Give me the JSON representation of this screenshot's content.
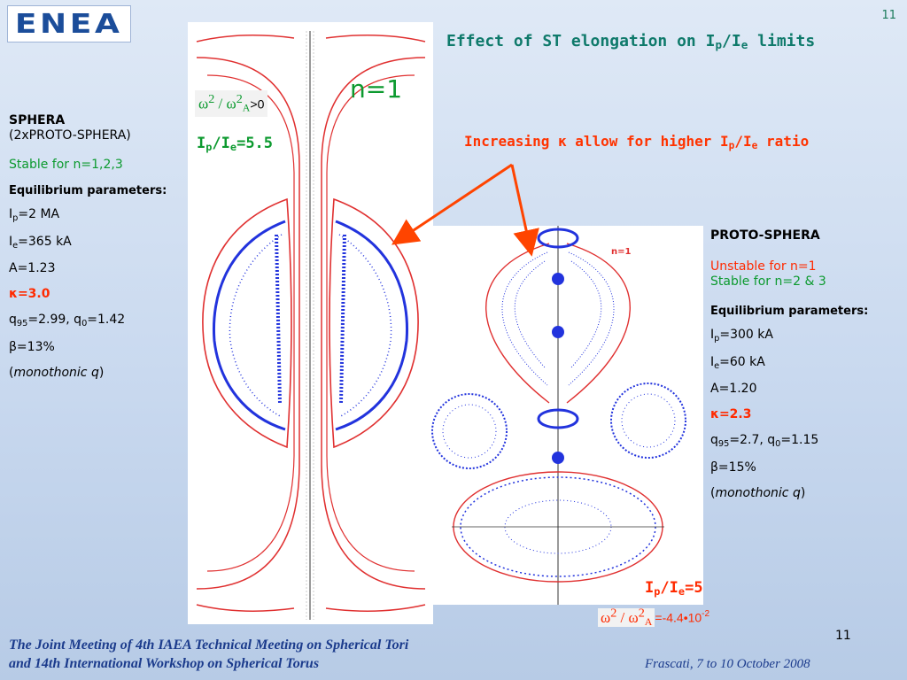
{
  "page_number": "11",
  "title": {
    "prefix": "Effect of ST elongation on I",
    "sub1": "p",
    "slash": "/I",
    "sub2": "e",
    "suffix": " limits"
  },
  "increasing": {
    "prefix": "Increasing ",
    "kappa": "κ",
    "mid": " allow for higher I",
    "sub1": "p",
    "slash": "/I",
    "sub2": "e",
    "suffix": " ratio"
  },
  "logo_text": "ENEA",
  "left_plot": {
    "mode_label": "n=1",
    "omega_expr": {
      "w": "ω",
      "sup": "2",
      "slash": " / ",
      "sub": "A",
      "rest": ">0"
    },
    "ratio": {
      "i": "I",
      "sub1": "p",
      "slash": "/I",
      "sub2": "e",
      "value": "=5.5"
    }
  },
  "right_plot": {
    "mode_label": "n=1",
    "ratio": {
      "i": "I",
      "sub1": "p",
      "slash": "/I",
      "sub2": "e",
      "value": "=5"
    },
    "omega_expr": {
      "w": "ω",
      "sup": "2",
      "slash": " / ",
      "sub": "A",
      "rest": "=-4.4•10",
      "exp": "-2"
    }
  },
  "sphera": {
    "name": "SPHERA",
    "subtitle": "(2xPROTO-SPHERA)",
    "stability": "Stable for n=1,2,3",
    "eq_header": "Equilibrium parameters:",
    "ip": {
      "label": "I",
      "sub": "p",
      "value": "=2 MA"
    },
    "ie": {
      "label": "I",
      "sub": "e",
      "value": "=365 kA"
    },
    "a": "A=1.23",
    "kappa": "κ=3.0",
    "q": {
      "label": "q",
      "sub95": "95",
      "mid": "=2.99, q",
      "sub0": "0",
      "tail": "=1.42"
    },
    "beta": "β=13%",
    "mono_open": "(",
    "mono": "monothonic q",
    "mono_close": ")"
  },
  "proto": {
    "name": "PROTO-SPHERA",
    "unstable": "Unstable for n=1",
    "stable": "Stable for n=2 & 3",
    "eq_header": "Equilibrium parameters:",
    "ip": {
      "label": "I",
      "sub": "p",
      "value": "=300 kA"
    },
    "ie": {
      "label": "I",
      "sub": "e",
      "value": "=60 kA"
    },
    "a": "A=1.20",
    "kappa": "κ=2.3",
    "q": {
      "label": "q",
      "sub95": "95",
      "mid": "=2.7, q",
      "sub0": "0",
      "tail": "=1.15"
    },
    "beta": "β=15%",
    "mono_open": "(",
    "mono": "monothonic q",
    "mono_close": ")"
  },
  "footer": {
    "line1": "The Joint Meeting of 4th IAEA Technical Meeting on Spherical Tori",
    "line2": "and 14th International Workshop on Spherical Torus",
    "right": "Frascati, 7 to 10 October 2008",
    "page": "11"
  },
  "colors": {
    "title": "#0f7a6b",
    "accent": "#ff2a00",
    "green": "#0c9a2f",
    "footer": "#1b3b8c",
    "flux": "#e03030",
    "field": "#2233dd"
  }
}
